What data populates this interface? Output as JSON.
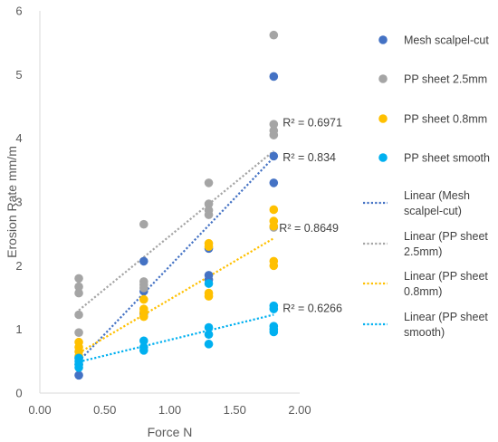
{
  "chart_data": {
    "type": "scatter",
    "xlabel": "Force N",
    "ylabel": "Erosion Rate mm/m",
    "xlim": [
      0,
      2
    ],
    "ylim": [
      0,
      6
    ],
    "x_ticks": [
      "0.00",
      "0.50",
      "1.00",
      "1.50",
      "2.00"
    ],
    "y_ticks": [
      "0",
      "1",
      "2",
      "3",
      "4",
      "5",
      "6"
    ],
    "grid": false,
    "legend_position": "right",
    "series": [
      {
        "name": "Mesh scalpel-cut",
        "color": "#4472c4",
        "points": [
          [
            0.3,
            0.28
          ],
          [
            0.3,
            0.45
          ],
          [
            0.3,
            0.55
          ],
          [
            0.8,
            2.07
          ],
          [
            0.8,
            1.25
          ],
          [
            0.8,
            1.6
          ],
          [
            1.3,
            2.27
          ],
          [
            1.3,
            1.85
          ],
          [
            1.3,
            1.78
          ],
          [
            1.8,
            4.97
          ],
          [
            1.8,
            3.72
          ],
          [
            1.8,
            3.3
          ]
        ]
      },
      {
        "name": "PP sheet 2.5mm",
        "color": "#a5a5a5",
        "points": [
          [
            0.3,
            1.8
          ],
          [
            0.3,
            1.67
          ],
          [
            0.3,
            1.57
          ],
          [
            0.3,
            1.23
          ],
          [
            0.3,
            0.95
          ],
          [
            0.8,
            2.65
          ],
          [
            0.8,
            1.75
          ],
          [
            0.8,
            1.7
          ],
          [
            0.8,
            1.65
          ],
          [
            1.3,
            3.3
          ],
          [
            1.3,
            2.97
          ],
          [
            1.3,
            2.87
          ],
          [
            1.3,
            2.8
          ],
          [
            1.8,
            5.62
          ],
          [
            1.8,
            4.22
          ],
          [
            1.8,
            4.12
          ],
          [
            1.8,
            4.05
          ],
          [
            1.8,
            2.6
          ]
        ]
      },
      {
        "name": "PP sheet 0.8mm",
        "color": "#ffc000",
        "points": [
          [
            0.3,
            0.8
          ],
          [
            0.3,
            0.72
          ],
          [
            0.3,
            0.65
          ],
          [
            0.3,
            0.58
          ],
          [
            0.8,
            1.47
          ],
          [
            0.8,
            1.32
          ],
          [
            0.8,
            1.27
          ],
          [
            0.8,
            1.2
          ],
          [
            1.3,
            2.35
          ],
          [
            1.3,
            2.3
          ],
          [
            1.3,
            1.57
          ],
          [
            1.3,
            1.52
          ],
          [
            1.8,
            2.88
          ],
          [
            1.8,
            2.7
          ],
          [
            1.8,
            2.62
          ],
          [
            1.8,
            2.07
          ],
          [
            1.8,
            2.0
          ]
        ]
      },
      {
        "name": "PP sheet smooth",
        "color": "#00b0f0",
        "points": [
          [
            0.3,
            0.55
          ],
          [
            0.3,
            0.5
          ],
          [
            0.3,
            0.45
          ],
          [
            0.3,
            0.4
          ],
          [
            0.8,
            0.82
          ],
          [
            0.8,
            0.72
          ],
          [
            0.8,
            0.67
          ],
          [
            1.3,
            1.72
          ],
          [
            1.3,
            1.03
          ],
          [
            1.3,
            0.92
          ],
          [
            1.3,
            0.77
          ],
          [
            1.8,
            1.37
          ],
          [
            1.8,
            1.32
          ],
          [
            1.8,
            1.05
          ],
          [
            1.8,
            1.0
          ],
          [
            1.8,
            0.96
          ]
        ]
      }
    ],
    "trendlines": [
      {
        "name": "Linear (Mesh scalpel-cut)",
        "color": "#4472c4",
        "x": [
          0.3,
          1.8
        ],
        "y": [
          0.5,
          3.7
        ],
        "r2": "R² = 0.834"
      },
      {
        "name": "Linear (PP sheet 2.5mm)",
        "color": "#a5a5a5",
        "x": [
          0.3,
          1.8
        ],
        "y": [
          1.3,
          3.8
        ],
        "r2": "R² = 0.6971"
      },
      {
        "name": "Linear (PP sheet 0.8mm)",
        "color": "#ffc000",
        "x": [
          0.3,
          1.8
        ],
        "y": [
          0.63,
          2.43
        ],
        "r2": "R² = 0.8649"
      },
      {
        "name": "Linear (PP sheet smooth)",
        "color": "#00b0f0",
        "x": [
          0.3,
          1.8
        ],
        "y": [
          0.49,
          1.23
        ],
        "r2": "R² = 0.6266"
      }
    ],
    "legend": [
      {
        "kind": "marker",
        "lines": [
          "Mesh scalpel-cut"
        ],
        "color": "#4472c4"
      },
      {
        "kind": "marker",
        "lines": [
          "PP sheet 2.5mm"
        ],
        "color": "#a5a5a5"
      },
      {
        "kind": "marker",
        "lines": [
          "PP sheet 0.8mm"
        ],
        "color": "#ffc000"
      },
      {
        "kind": "marker",
        "lines": [
          "PP sheet smooth"
        ],
        "color": "#00b0f0"
      },
      {
        "kind": "line",
        "lines": [
          "Linear (Mesh",
          "scalpel-cut)"
        ],
        "color": "#4472c4"
      },
      {
        "kind": "line",
        "lines": [
          "Linear (PP sheet",
          "2.5mm)"
        ],
        "color": "#a5a5a5"
      },
      {
        "kind": "line",
        "lines": [
          "Linear (PP sheet",
          "0.8mm)"
        ],
        "color": "#ffc000"
      },
      {
        "kind": "line",
        "lines": [
          "Linear (PP sheet",
          "smooth)"
        ],
        "color": "#00b0f0"
      }
    ]
  }
}
